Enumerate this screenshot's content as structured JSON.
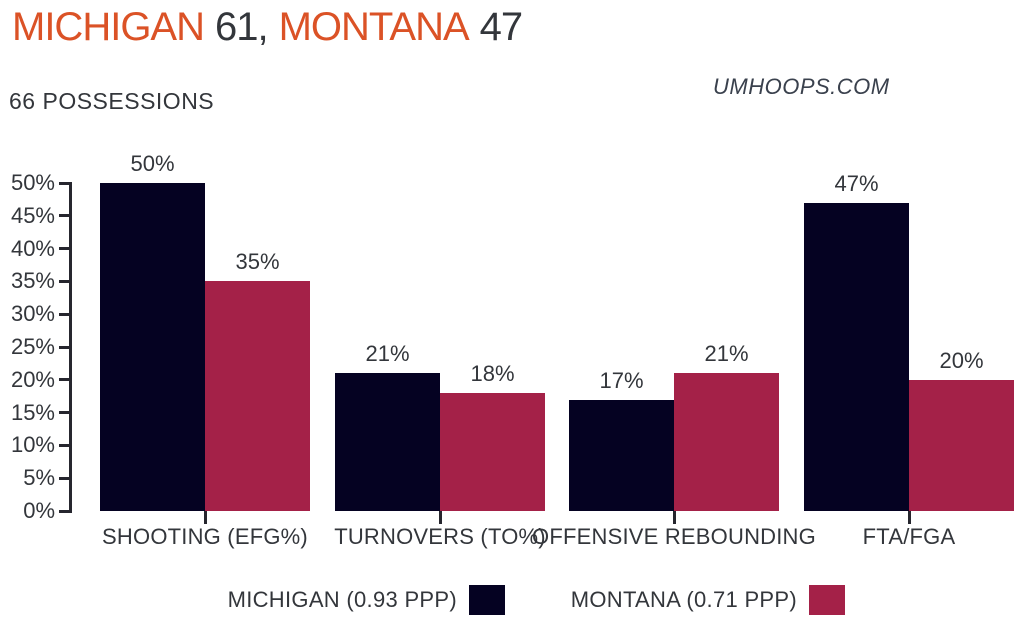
{
  "title": {
    "team1": "MICHIGAN",
    "score1": "61,",
    "team2": "MONTANA",
    "score2": "47"
  },
  "subtitle": "66 POSSESSIONS",
  "watermark": "UMHOOPS.COM",
  "colors": {
    "accent_orange": "#DB5226",
    "michigan_navy": "#050222",
    "montana_crimson": "#A42148",
    "text_dark": "#33363B",
    "axis": "#26262E"
  },
  "legend": [
    {
      "label": "MICHIGAN (0.93 PPP)",
      "color": "#050222"
    },
    {
      "label": "MONTANA (0.71 PPP)",
      "color": "#A42148"
    }
  ],
  "chart_data": {
    "type": "bar",
    "title": "MICHIGAN 61, MONTANA 47",
    "subtitle": "66 POSSESSIONS",
    "categories": [
      "SHOOTING (EFG%)",
      "TURNOVERS (TO%)",
      "OFFENSIVE REBOUNDING",
      "FTA/FGA"
    ],
    "series": [
      {
        "name": "MICHIGAN (0.93 PPP)",
        "color": "#050222",
        "values": [
          50,
          21,
          17,
          47
        ]
      },
      {
        "name": "MONTANA (0.71 PPP)",
        "color": "#A42148",
        "values": [
          35,
          18,
          21,
          20
        ]
      }
    ],
    "value_labels": [
      [
        "50%",
        "35%"
      ],
      [
        "21%",
        "18%"
      ],
      [
        "17%",
        "21%"
      ],
      [
        "47%",
        "20%"
      ]
    ],
    "y_ticks": [
      "0%",
      "5%",
      "10%",
      "15%",
      "20%",
      "25%",
      "30%",
      "35%",
      "40%",
      "45%",
      "50%"
    ],
    "ylim": [
      0,
      50
    ],
    "unit": "%",
    "grid": false,
    "legend_position": "bottom"
  }
}
